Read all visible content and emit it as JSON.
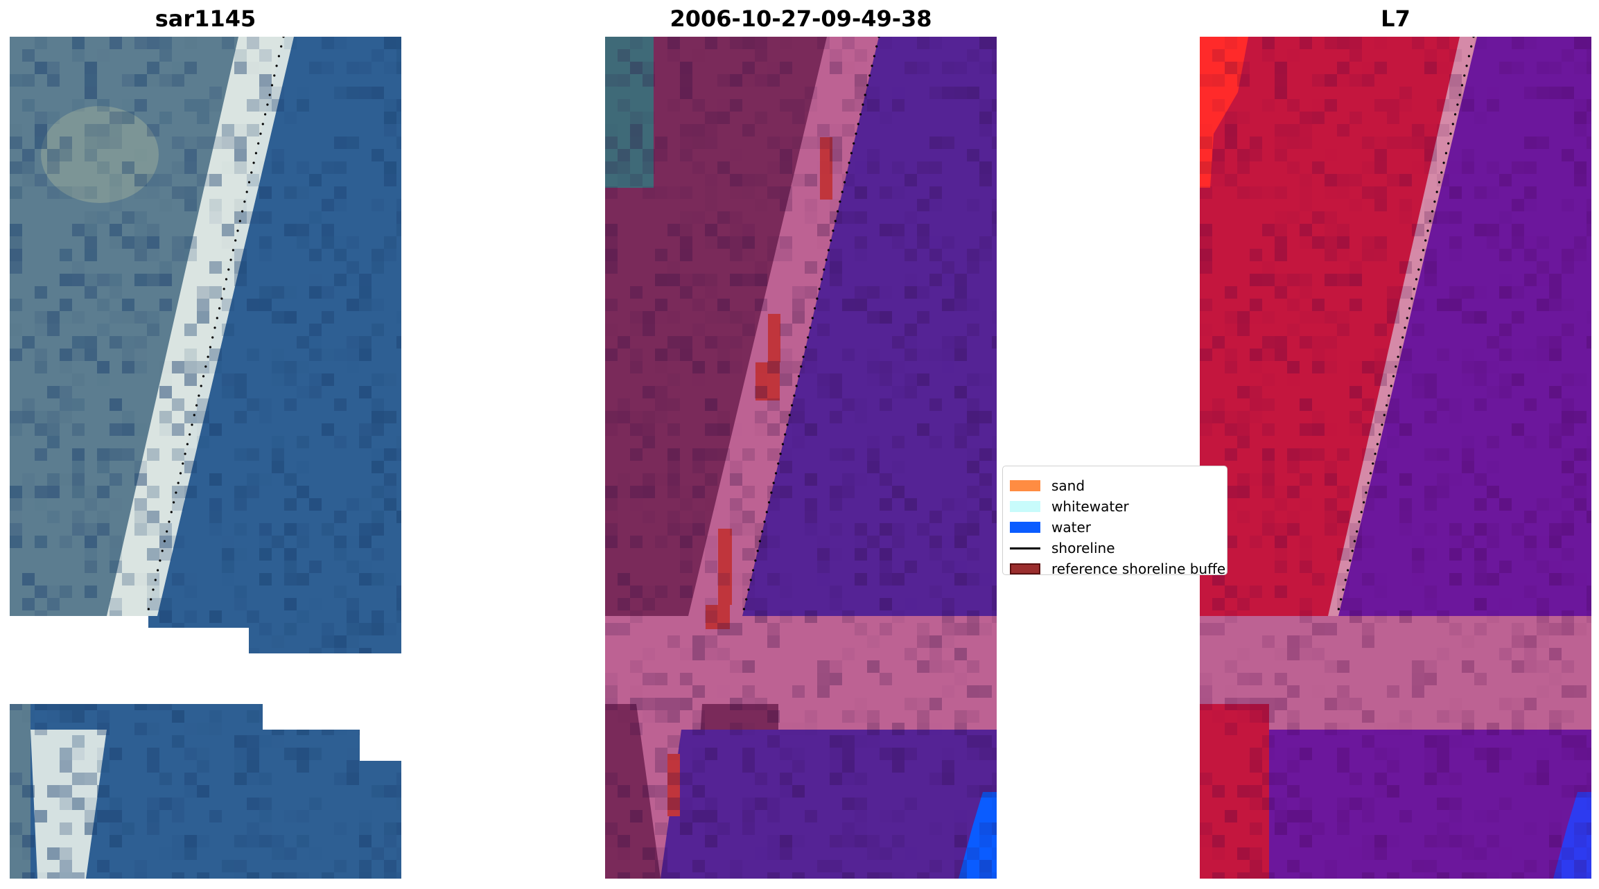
{
  "panels": [
    {
      "title": "sar1145"
    },
    {
      "title": "2006-10-27-09-49-38"
    },
    {
      "title": "L7"
    }
  ],
  "legend": {
    "items": [
      {
        "label": "sand",
        "color": "#ff8c42",
        "kind": "patch"
      },
      {
        "label": "whitewater",
        "color": "#c8fbfb",
        "kind": "patch"
      },
      {
        "label": "water",
        "color": "#0a5cff",
        "kind": "patch"
      },
      {
        "label": "shoreline",
        "color": "#000000",
        "kind": "line"
      },
      {
        "label": "reference shoreline buffer",
        "color": "#9b2e2e",
        "kind": "patch"
      }
    ]
  },
  "colors": {
    "rgb_water": "#2e5f93",
    "rgb_land": "#5c7d90",
    "rgb_surf": "#e8f0ea",
    "class_land": "#7a2a5a",
    "class_beach": "#bd6293",
    "class_water": "#552395",
    "class_buffer": "#c0353c",
    "class_bright_water": "#0a5cff",
    "nir_land": "#c4163e",
    "nir_water": "#6c179c",
    "nir_bright_land": "#ff2a2a",
    "nir_bright_water": "#2d3bf0",
    "nodata": "#ffffff"
  }
}
